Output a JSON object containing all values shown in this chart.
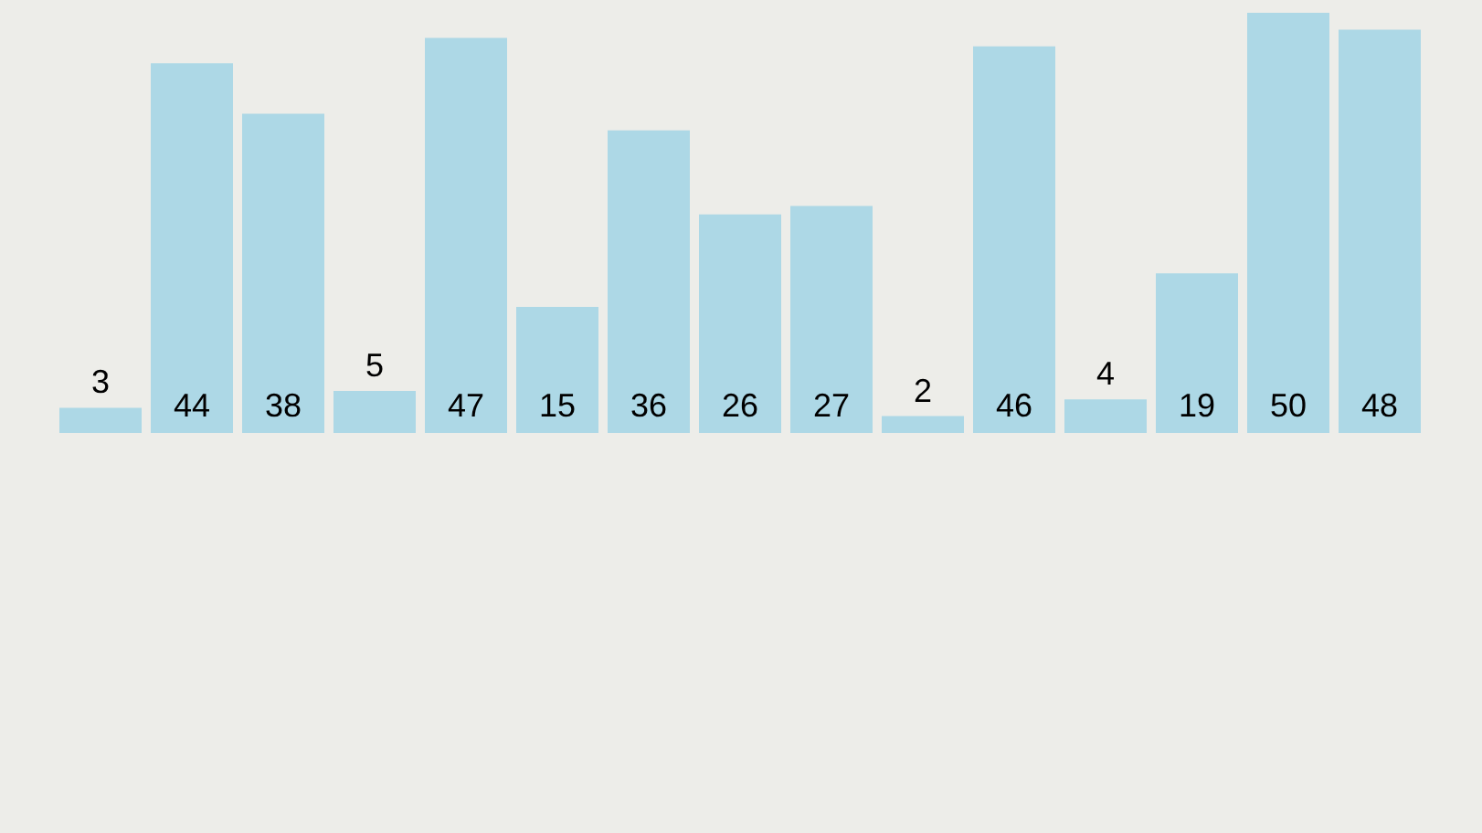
{
  "chart_data": {
    "type": "bar",
    "categories": [
      null,
      null,
      null,
      null,
      null,
      null,
      null,
      null,
      null,
      null,
      null,
      null,
      null,
      null,
      null
    ],
    "values": [
      3,
      44,
      38,
      5,
      47,
      15,
      36,
      26,
      27,
      2,
      46,
      4,
      19,
      50,
      48
    ],
    "color": "#add8e6",
    "data_labels": true
  }
}
